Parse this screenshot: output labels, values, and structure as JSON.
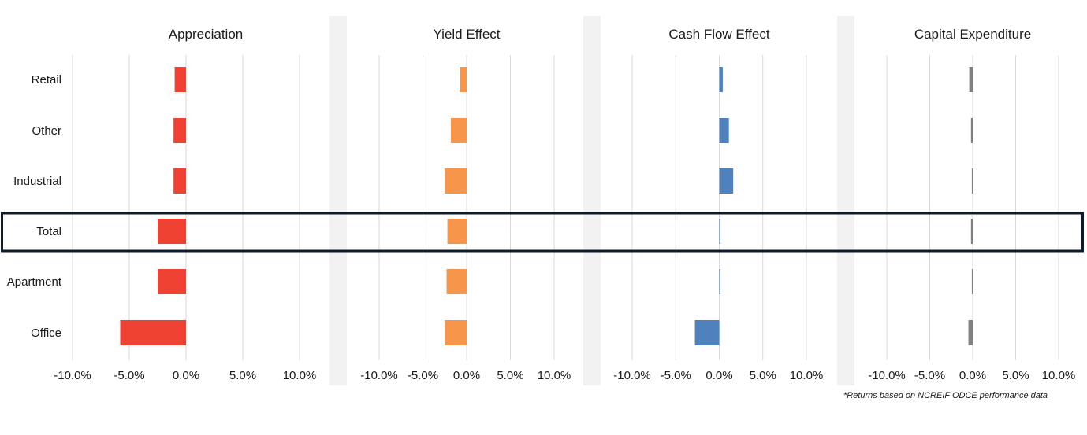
{
  "chart_data": [
    {
      "type": "bar",
      "orientation": "horizontal",
      "title": "Appreciation",
      "color": "#F04232",
      "categories": [
        "Retail",
        "Other",
        "Industrial",
        "Total",
        "Apartment",
        "Office"
      ],
      "values": [
        -1.0,
        -1.1,
        -1.1,
        -2.5,
        -2.5,
        -5.8
      ],
      "xlim": [
        -10,
        10
      ],
      "ticks": [
        "-10.0%",
        "-5.0%",
        "0.0%",
        "5.0%",
        "10.0%"
      ],
      "grid": true
    },
    {
      "type": "bar",
      "orientation": "horizontal",
      "title": "Yield Effect",
      "color": "#F7964A",
      "categories": [
        "Retail",
        "Other",
        "Industrial",
        "Total",
        "Apartment",
        "Office"
      ],
      "values": [
        -0.8,
        -1.8,
        -2.5,
        -2.2,
        -2.3,
        -2.5
      ],
      "xlim": [
        -10,
        10
      ],
      "ticks": [
        "-10.0%",
        "-5.0%",
        "0.0%",
        "5.0%",
        "10.0%"
      ],
      "grid": true
    },
    {
      "type": "bar",
      "orientation": "horizontal",
      "title": "Cash Flow Effect",
      "color": "#4F81BD",
      "categories": [
        "Retail",
        "Other",
        "Industrial",
        "Total",
        "Apartment",
        "Office"
      ],
      "values": [
        0.4,
        1.1,
        1.6,
        0.1,
        0.1,
        -2.8
      ],
      "xlim": [
        -10,
        10
      ],
      "ticks": [
        "-10.0%",
        "-5.0%",
        "0.0%",
        "5.0%",
        "10.0%"
      ],
      "grid": true
    },
    {
      "type": "bar",
      "orientation": "horizontal",
      "title": "Capital Expenditure",
      "color": "#808080",
      "categories": [
        "Retail",
        "Other",
        "Industrial",
        "Total",
        "Apartment",
        "Office"
      ],
      "values": [
        -0.4,
        -0.2,
        -0.1,
        -0.2,
        -0.1,
        -0.5
      ],
      "xlim": [
        -10,
        10
      ],
      "ticks": [
        "-10.0%",
        "-5.0%",
        "0.0%",
        "5.0%",
        "10.0%"
      ],
      "grid": true
    }
  ],
  "highlighted_category": "Total",
  "footnote": "*Returns based on NCREIF ODCE performance data"
}
